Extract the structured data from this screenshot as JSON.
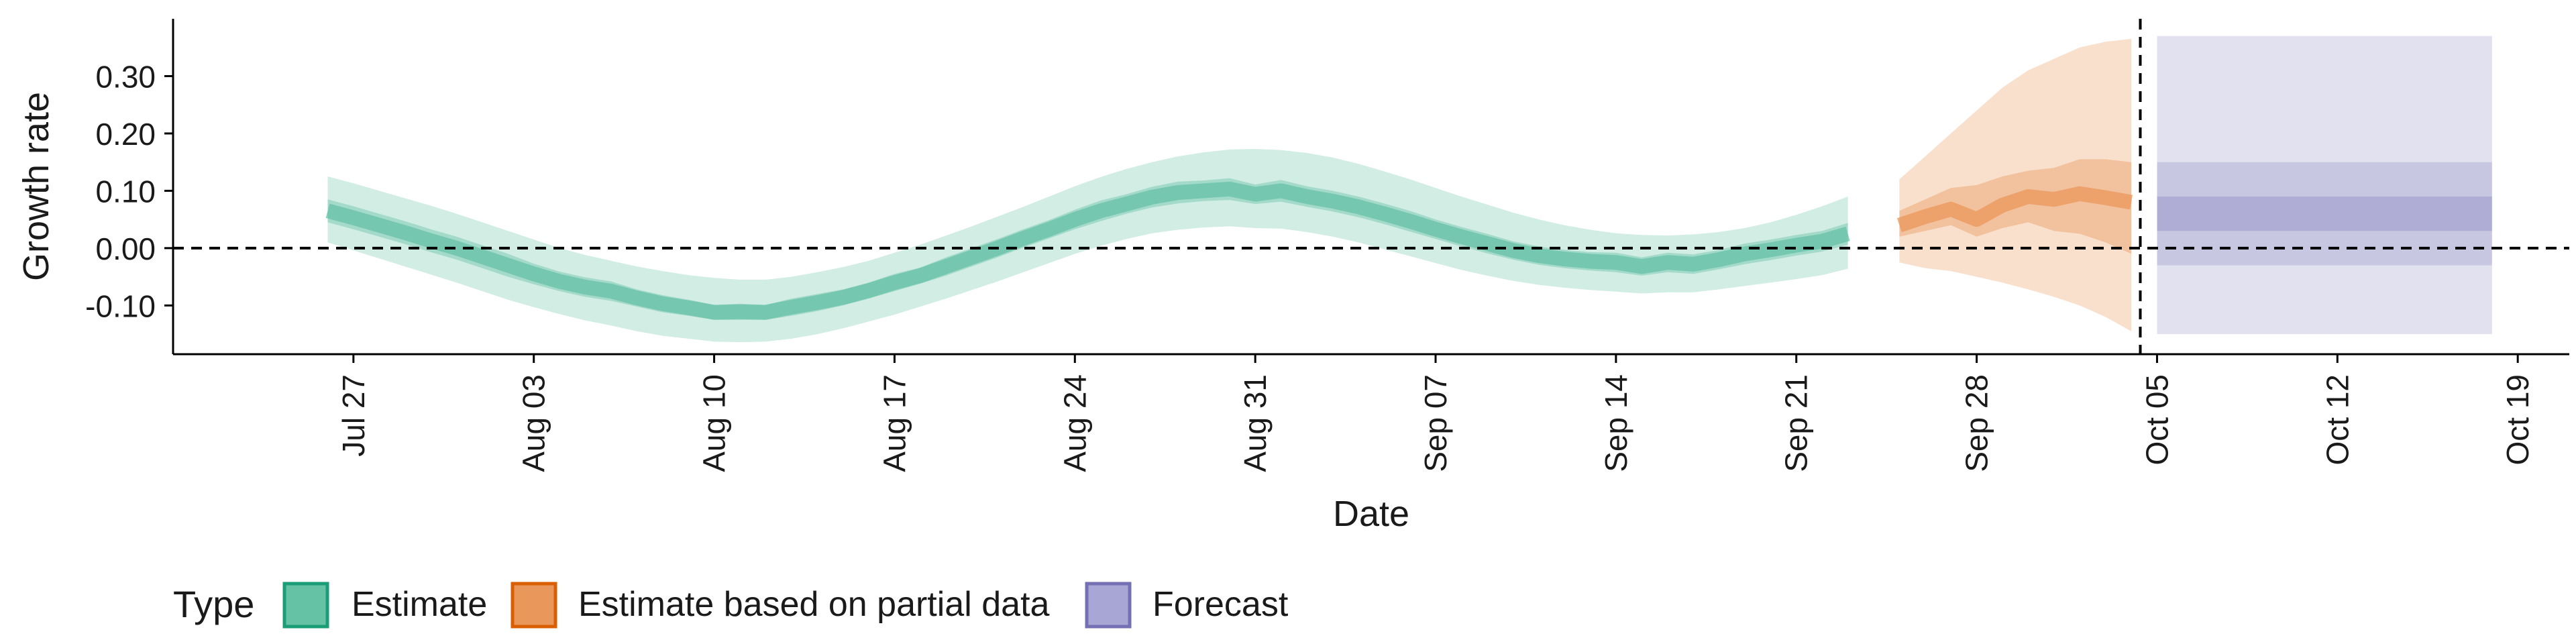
{
  "chart_data": {
    "type": "area",
    "xlabel": "Date",
    "ylabel": "Growth rate",
    "x_tick_labels": [
      "Jul 27",
      "Aug 03",
      "Aug 10",
      "Aug 17",
      "Aug 24",
      "Aug 31",
      "Sep 07",
      "Sep 14",
      "Sep 21",
      "Sep 28",
      "Oct 05",
      "Oct 12",
      "Oct 19"
    ],
    "x_ticks": [
      "2020-07-27",
      "2020-08-03",
      "2020-08-10",
      "2020-08-17",
      "2020-08-24",
      "2020-08-31",
      "2020-09-07",
      "2020-09-14",
      "2020-09-21",
      "2020-09-28",
      "2020-10-05",
      "2020-10-12",
      "2020-10-19"
    ],
    "y_tick_labels": [
      "-0.10",
      "0.00",
      "0.10",
      "0.20",
      "0.30"
    ],
    "y_ticks": [
      -0.1,
      0.0,
      0.1,
      0.2,
      0.3
    ],
    "xlim": [
      "2020-07-20",
      "2020-10-21"
    ],
    "ylim": [
      -0.185,
      0.4
    ],
    "hline": 0.0,
    "vline": "2020-10-04",
    "grid": false,
    "legend": {
      "title": "Type",
      "placement": "bottom-left",
      "items": [
        {
          "label": "Estimate",
          "fill": "#66c2a5",
          "border": "#1b9e77"
        },
        {
          "label": "Estimate based on partial data",
          "fill": "#e9975a",
          "border": "#d95f02"
        },
        {
          "label": "Forecast",
          "fill": "#a8a6d4",
          "border": "#7570b3"
        }
      ]
    },
    "series": [
      {
        "name": "Estimate",
        "color": "#1b9e77",
        "x": [
          "2020-07-26",
          "2020-07-27",
          "2020-07-28",
          "2020-07-29",
          "2020-07-30",
          "2020-07-31",
          "2020-08-01",
          "2020-08-02",
          "2020-08-03",
          "2020-08-04",
          "2020-08-05",
          "2020-08-06",
          "2020-08-07",
          "2020-08-08",
          "2020-08-09",
          "2020-08-10",
          "2020-08-11",
          "2020-08-12",
          "2020-08-13",
          "2020-08-14",
          "2020-08-15",
          "2020-08-16",
          "2020-08-17",
          "2020-08-18",
          "2020-08-19",
          "2020-08-20",
          "2020-08-21",
          "2020-08-22",
          "2020-08-23",
          "2020-08-24",
          "2020-08-25",
          "2020-08-26",
          "2020-08-27",
          "2020-08-28",
          "2020-08-29",
          "2020-08-30",
          "2020-08-31",
          "2020-09-01",
          "2020-09-02",
          "2020-09-03",
          "2020-09-04",
          "2020-09-05",
          "2020-09-06",
          "2020-09-07",
          "2020-09-08",
          "2020-09-09",
          "2020-09-10",
          "2020-09-11",
          "2020-09-12",
          "2020-09-13",
          "2020-09-14",
          "2020-09-15",
          "2020-09-16",
          "2020-09-17",
          "2020-09-18",
          "2020-09-19",
          "2020-09-20",
          "2020-09-21",
          "2020-09-22",
          "2020-09-23"
        ],
        "median": [
          0.065,
          0.053,
          0.04,
          0.027,
          0.013,
          0.0,
          -0.015,
          -0.03,
          -0.045,
          -0.058,
          -0.068,
          -0.075,
          -0.087,
          -0.097,
          -0.104,
          -0.112,
          -0.111,
          -0.112,
          -0.103,
          -0.095,
          -0.086,
          -0.074,
          -0.06,
          -0.048,
          -0.032,
          -0.016,
          0.0,
          0.017,
          0.033,
          0.05,
          0.065,
          0.077,
          0.089,
          0.097,
          0.1,
          0.103,
          0.094,
          0.1,
          0.09,
          0.082,
          0.072,
          0.06,
          0.047,
          0.033,
          0.02,
          0.008,
          -0.004,
          -0.013,
          -0.019,
          -0.023,
          -0.025,
          -0.032,
          -0.025,
          -0.028,
          -0.02,
          -0.01,
          -0.003,
          0.005,
          0.012,
          0.025
        ],
        "lower_50": [
          0.045,
          0.033,
          0.02,
          0.007,
          -0.007,
          -0.02,
          -0.035,
          -0.05,
          -0.063,
          -0.075,
          -0.085,
          -0.092,
          -0.102,
          -0.112,
          -0.118,
          -0.125,
          -0.125,
          -0.125,
          -0.118,
          -0.11,
          -0.1,
          -0.088,
          -0.075,
          -0.062,
          -0.048,
          -0.032,
          -0.016,
          0.001,
          0.017,
          0.033,
          0.047,
          0.06,
          0.071,
          0.078,
          0.082,
          0.084,
          0.077,
          0.081,
          0.072,
          0.064,
          0.054,
          0.042,
          0.029,
          0.016,
          0.003,
          -0.009,
          -0.02,
          -0.029,
          -0.035,
          -0.039,
          -0.042,
          -0.048,
          -0.042,
          -0.045,
          -0.037,
          -0.028,
          -0.021,
          -0.013,
          -0.006,
          0.006
        ],
        "upper_50": [
          0.085,
          0.073,
          0.06,
          0.047,
          0.033,
          0.02,
          0.005,
          -0.01,
          -0.027,
          -0.041,
          -0.051,
          -0.058,
          -0.072,
          -0.082,
          -0.09,
          -0.099,
          -0.097,
          -0.099,
          -0.088,
          -0.08,
          -0.072,
          -0.06,
          -0.045,
          -0.034,
          -0.016,
          0.0,
          0.016,
          0.033,
          0.049,
          0.067,
          0.083,
          0.094,
          0.107,
          0.116,
          0.118,
          0.122,
          0.111,
          0.119,
          0.108,
          0.1,
          0.09,
          0.078,
          0.065,
          0.05,
          0.037,
          0.025,
          0.012,
          0.003,
          -0.003,
          -0.007,
          -0.008,
          -0.016,
          -0.008,
          -0.011,
          -0.003,
          0.008,
          0.015,
          0.023,
          0.03,
          0.044
        ],
        "lower_90": [
          0.01,
          -0.004,
          -0.018,
          -0.032,
          -0.046,
          -0.06,
          -0.075,
          -0.09,
          -0.103,
          -0.115,
          -0.126,
          -0.135,
          -0.145,
          -0.153,
          -0.158,
          -0.163,
          -0.164,
          -0.163,
          -0.158,
          -0.15,
          -0.14,
          -0.128,
          -0.116,
          -0.102,
          -0.088,
          -0.073,
          -0.058,
          -0.042,
          -0.026,
          -0.01,
          0.004,
          0.016,
          0.026,
          0.032,
          0.036,
          0.038,
          0.035,
          0.034,
          0.028,
          0.02,
          0.01,
          -0.002,
          -0.014,
          -0.026,
          -0.038,
          -0.048,
          -0.057,
          -0.064,
          -0.069,
          -0.073,
          -0.076,
          -0.079,
          -0.077,
          -0.077,
          -0.072,
          -0.066,
          -0.06,
          -0.054,
          -0.047,
          -0.036
        ],
        "upper_90": [
          0.125,
          0.113,
          0.1,
          0.087,
          0.074,
          0.06,
          0.045,
          0.03,
          0.015,
          0.0,
          -0.012,
          -0.022,
          -0.032,
          -0.04,
          -0.047,
          -0.052,
          -0.055,
          -0.055,
          -0.05,
          -0.042,
          -0.033,
          -0.022,
          -0.008,
          0.006,
          0.022,
          0.038,
          0.055,
          0.072,
          0.09,
          0.108,
          0.124,
          0.138,
          0.15,
          0.16,
          0.167,
          0.172,
          0.173,
          0.171,
          0.166,
          0.158,
          0.147,
          0.134,
          0.12,
          0.105,
          0.09,
          0.076,
          0.062,
          0.05,
          0.04,
          0.032,
          0.026,
          0.023,
          0.022,
          0.024,
          0.028,
          0.035,
          0.045,
          0.058,
          0.073,
          0.09
        ]
      },
      {
        "name": "Estimate based on partial data",
        "color": "#d95f02",
        "x": [
          "2020-09-25",
          "2020-09-26",
          "2020-09-27",
          "2020-09-28",
          "2020-09-29",
          "2020-09-30",
          "2020-10-01",
          "2020-10-02",
          "2020-10-03",
          "2020-10-04"
        ],
        "median": [
          0.04,
          0.055,
          0.068,
          0.05,
          0.075,
          0.09,
          0.085,
          0.095,
          0.088,
          0.08
        ],
        "lower_50": [
          0.02,
          0.03,
          0.04,
          0.02,
          0.035,
          0.045,
          0.03,
          0.025,
          0.01,
          -0.01
        ],
        "upper_50": [
          0.065,
          0.085,
          0.105,
          0.11,
          0.125,
          0.135,
          0.14,
          0.155,
          0.155,
          0.15
        ],
        "lower_90": [
          -0.025,
          -0.035,
          -0.04,
          -0.05,
          -0.06,
          -0.072,
          -0.085,
          -0.1,
          -0.12,
          -0.145
        ],
        "upper_90": [
          0.12,
          0.16,
          0.2,
          0.24,
          0.28,
          0.31,
          0.33,
          0.35,
          0.36,
          0.365
        ]
      },
      {
        "name": "Forecast",
        "color": "#7570b3",
        "x": [
          "2020-10-05",
          "2020-10-18"
        ],
        "median": [
          0.03,
          0.03
        ],
        "lower_50": [
          0.03,
          0.03
        ],
        "upper_50": [
          0.09,
          0.09
        ],
        "lower_90": [
          -0.03,
          -0.03
        ],
        "upper_90": [
          0.15,
          0.15
        ],
        "lower_outer": [
          -0.15,
          -0.15
        ],
        "upper_outer": [
          0.37,
          0.37
        ]
      }
    ]
  }
}
